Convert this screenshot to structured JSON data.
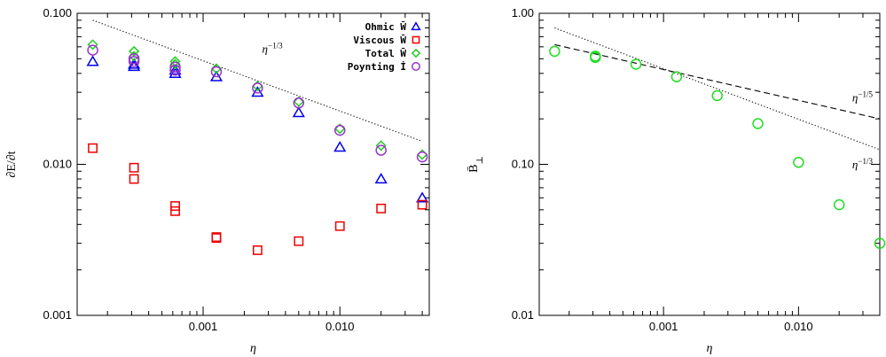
{
  "chart_data": [
    {
      "type": "scatter",
      "xscale": "log",
      "yscale": "log",
      "xlabel": "η",
      "ylabel": "∂E/∂t",
      "xlim": [
        0.00012,
        0.045
      ],
      "ylim": [
        0.001,
        0.1
      ],
      "xticks": [
        0.001,
        0.01
      ],
      "xtick_labels": [
        "0.001",
        "0.010"
      ],
      "yticks": [
        0.001,
        0.01,
        0.1
      ],
      "ytick_labels": [
        "0.001",
        "0.010",
        "0.100"
      ],
      "legend_position": "top-right",
      "series": [
        {
          "name": "Ohmic W̄",
          "marker": "triangle",
          "color": "#0000ee",
          "points": [
            [
              0.000156,
              0.048
            ],
            [
              0.0003125,
              0.046
            ],
            [
              0.0003125,
              0.0445
            ],
            [
              0.000625,
              0.042
            ],
            [
              0.000625,
              0.04
            ],
            [
              0.00125,
              0.038
            ],
            [
              0.0025,
              0.03
            ],
            [
              0.005,
              0.022
            ],
            [
              0.01,
              0.013
            ],
            [
              0.02,
              0.008
            ],
            [
              0.04,
              0.006
            ]
          ]
        },
        {
          "name": "Viscous W̄",
          "marker": "square",
          "color": "#ee0000",
          "points": [
            [
              0.000156,
              0.0128
            ],
            [
              0.0003125,
              0.0095
            ],
            [
              0.0003125,
              0.008
            ],
            [
              0.000625,
              0.0053
            ],
            [
              0.000625,
              0.0049
            ],
            [
              0.00125,
              0.0033
            ],
            [
              0.00125,
              0.00325
            ],
            [
              0.0025,
              0.0027
            ],
            [
              0.005,
              0.0031
            ],
            [
              0.01,
              0.0039
            ],
            [
              0.02,
              0.0051
            ],
            [
              0.04,
              0.0054
            ]
          ]
        },
        {
          "name": "Total W̄",
          "marker": "diamond",
          "color": "#22cc22",
          "points": [
            [
              0.000156,
              0.062
            ],
            [
              0.0003125,
              0.056
            ],
            [
              0.0003125,
              0.052
            ],
            [
              0.000625,
              0.048
            ],
            [
              0.000625,
              0.046
            ],
            [
              0.00125,
              0.043
            ],
            [
              0.0025,
              0.033
            ],
            [
              0.005,
              0.026
            ],
            [
              0.01,
              0.0172
            ],
            [
              0.02,
              0.0133
            ],
            [
              0.04,
              0.0116
            ]
          ]
        },
        {
          "name": "Poynting İ",
          "marker": "circle",
          "color": "#9933cc",
          "points": [
            [
              0.000156,
              0.057
            ],
            [
              0.0003125,
              0.05
            ],
            [
              0.0003125,
              0.048
            ],
            [
              0.000625,
              0.044
            ],
            [
              0.000625,
              0.042
            ],
            [
              0.00125,
              0.041
            ],
            [
              0.0025,
              0.032
            ],
            [
              0.005,
              0.0255
            ],
            [
              0.01,
              0.0168
            ],
            [
              0.02,
              0.0124
            ],
            [
              0.04,
              0.0112
            ]
          ]
        }
      ],
      "reference_lines": [
        {
          "label": "η",
          "label_exp": "−1/3",
          "style": "dotted",
          "x": [
            0.000156,
            0.04
          ],
          "y": [
            0.09,
            0.0142
          ],
          "label_at": [
            0.0027,
            0.055
          ]
        }
      ]
    },
    {
      "type": "scatter",
      "xscale": "log",
      "yscale": "log",
      "xlabel": "η",
      "ylabel": "B̄",
      "ylabel_sub": "⊥",
      "xlim": [
        0.00012,
        0.04
      ],
      "ylim": [
        0.01,
        1.0
      ],
      "xticks": [
        0.001,
        0.01
      ],
      "xtick_labels": [
        "0.001",
        "0.010"
      ],
      "yticks": [
        0.01,
        0.1,
        1.0
      ],
      "ytick_labels": [
        "0.01",
        "0.10",
        "1.00"
      ],
      "series": [
        {
          "marker": "circle",
          "color": "#22dd22",
          "points": [
            [
              0.000156,
              0.56
            ],
            [
              0.0003125,
              0.52
            ],
            [
              0.0003125,
              0.51
            ],
            [
              0.000625,
              0.46
            ],
            [
              0.00125,
              0.38
            ],
            [
              0.0025,
              0.285
            ],
            [
              0.005,
              0.186
            ],
            [
              0.01,
              0.103
            ],
            [
              0.02,
              0.054
            ],
            [
              0.04,
              0.03
            ]
          ]
        }
      ],
      "reference_lines": [
        {
          "label": "η",
          "label_exp": "−1/5",
          "style": "dashed",
          "x": [
            0.000156,
            0.04
          ],
          "y": [
            0.62,
            0.2
          ],
          "label_at": [
            0.025,
            0.26
          ]
        },
        {
          "label": "η",
          "label_exp": "−1/3",
          "style": "dotted",
          "x": [
            0.000156,
            0.04
          ],
          "y": [
            0.8,
            0.125
          ],
          "label_at": [
            0.025,
            0.094
          ]
        }
      ]
    }
  ]
}
